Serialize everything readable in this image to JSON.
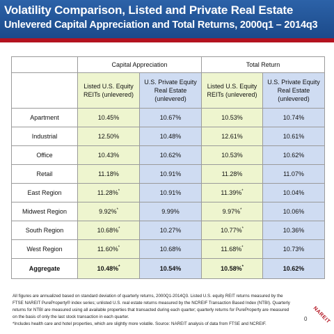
{
  "slide": {
    "title": "Volatility Comparison, Listed and Private Real Estate",
    "subtitle": "Unlevered Capital Appreciation and Total Returns, 2000q1 – 2014q3",
    "page_number": "0",
    "logo_text": "NAREIT",
    "colors": {
      "header": "#1b4a8a",
      "accent_bar": "#b3121f",
      "listed_cell": "#eef5cf",
      "private_cell": "#cfdcf2"
    }
  },
  "table": {
    "group_headers": [
      "Capital Appreciation",
      "Total Return"
    ],
    "column_headers": [
      "Listed U.S. Equity REITs (unlevered)",
      "U.S. Private Equity Real Estate (unlevered)",
      "Listed U.S. Equity REITs (unlevered)",
      "U.S. Private Equity Real Estate (unlevered)"
    ],
    "rows": [
      {
        "label": "Apartment",
        "v": [
          "10.45%",
          "10.67%",
          "10.53%",
          "10.74%"
        ],
        "m": [
          "",
          "",
          "",
          ""
        ]
      },
      {
        "label": "Industrial",
        "v": [
          "12.50%",
          "10.48%",
          "12.61%",
          "10.61%"
        ],
        "m": [
          "",
          "",
          "",
          ""
        ]
      },
      {
        "label": "Office",
        "v": [
          "10.43%",
          "10.62%",
          "10.53%",
          "10.62%"
        ],
        "m": [
          "",
          "",
          "",
          ""
        ]
      },
      {
        "label": "Retail",
        "v": [
          "11.18%",
          "10.91%",
          "11.28%",
          "11.07%"
        ],
        "m": [
          "",
          "",
          "",
          ""
        ]
      },
      {
        "label": "East Region",
        "v": [
          "11.28%",
          "10.91%",
          "11.39%",
          "10.04%"
        ],
        "m": [
          "*",
          "",
          "*",
          ""
        ]
      },
      {
        "label": "Midwest Region",
        "v": [
          "9.92%",
          "9.99%",
          "9.97%",
          "10.06%"
        ],
        "m": [
          "*",
          "",
          "*",
          ""
        ]
      },
      {
        "label": "South Region",
        "v": [
          "10.68%",
          "10.27%",
          "10.77%",
          "10.36%"
        ],
        "m": [
          "*",
          "",
          "*",
          ""
        ]
      },
      {
        "label": "West Region",
        "v": [
          "11.60%",
          "10.68%",
          "11.68%",
          "10.73%"
        ],
        "m": [
          "*",
          "",
          "*",
          ""
        ]
      },
      {
        "label": "Aggregate",
        "v": [
          "10.48%",
          "10.54%",
          "10.58%",
          "10.62%"
        ],
        "m": [
          "*",
          "",
          "*",
          ""
        ]
      }
    ]
  },
  "footnote": {
    "lines": [
      "All figures are annualized based on standard deviation of quarterly returns, 2000Q1-2014Q3.  Listed U.S. equity REIT returns measured by the",
      "FTSE NAREIT PureProperty® index series; unlisted U.S. real estate returns measured by the NCREIF Transaction Based Index (NTBI). Quarterly",
      "returns for NTBI are measured using all available properties that transacted during each quarter; quarterly returns for PureProperty are measured",
      "on the basis of only the last stock transaction in each quarter.",
      "*Includes health care and hotel properties, which are slightly more volatile.  Source: NAREIT analysis of data from FTSE and NCREIF."
    ]
  }
}
